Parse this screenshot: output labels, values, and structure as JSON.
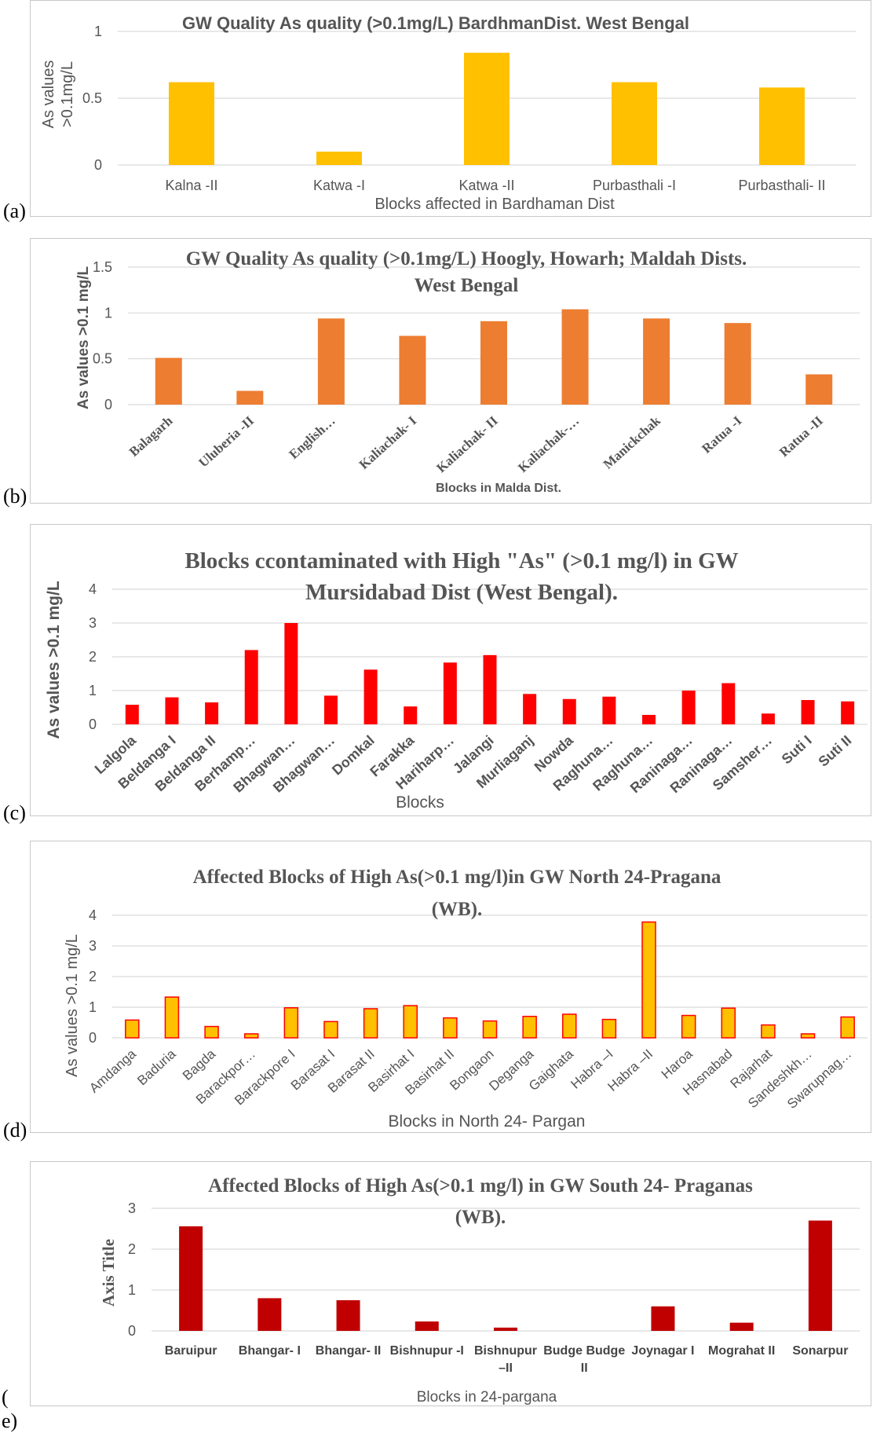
{
  "charts": [
    {
      "panel_label": "(a)",
      "chart_data": {
        "type": "bar",
        "title": "GW Quality As quality (>0.1mg/L) BardhmanDist. West Bengal",
        "xlabel": "Blocks affected in Bardhaman Dist",
        "ylabel": "As values >0.1mg/L",
        "categories": [
          "Kalna -II",
          "Katwa -I",
          "Katwa -II",
          "Purbasthali -I",
          "Purbasthali- II"
        ],
        "values": [
          0.62,
          0.1,
          0.84,
          0.62,
          0.58
        ],
        "ylim": [
          0,
          1
        ],
        "yticks": [
          "0",
          "0.5",
          "1"
        ],
        "grid": true,
        "color": "#FFC000"
      }
    },
    {
      "panel_label": "(b)",
      "chart_data": {
        "type": "bar",
        "title": "GW Quality As quality (>0.1mg/L) Hoogly, Howarh; Maldah Dists. West Bengal",
        "xlabel": "Blocks in Malda Dist.",
        "ylabel": "As values >0.1 mg/L",
        "categories": [
          "Balagarh",
          "Uluberia -II",
          "English…",
          "Kaliachak- I",
          "Kaliachak- II",
          "Kaliachak-…",
          "Manickchak",
          "Ratua -I",
          "Ratua -II"
        ],
        "values": [
          0.51,
          0.15,
          0.94,
          0.75,
          0.91,
          1.04,
          0.94,
          0.89,
          0.33
        ],
        "ylim": [
          0,
          1.5
        ],
        "yticks": [
          "0",
          "0.5",
          "1",
          "1.5"
        ],
        "grid": true,
        "color": "#ED7D31"
      }
    },
    {
      "panel_label": "(c)",
      "chart_data": {
        "type": "bar",
        "title": "Blocks ccontaminated with High \"As\" (>0.1 mg/l) in GW Mursidabad Dist (West Bengal).",
        "xlabel": "Blocks",
        "ylabel": "As values >0.1 mg/L",
        "categories": [
          "Lalgola",
          "Beldanga I",
          "Beldanga II",
          "Berhamp…",
          "Bhagwan…",
          "Bhagwan…",
          "Domkal",
          "Farakka",
          "Hariharp…",
          "Jalangi",
          "Murliaganj",
          "Nowda",
          "Raghuna…",
          "Raghuna…",
          "Raninaga…",
          "Raninaga…",
          "Samsher…",
          "Suti I",
          "Suti II"
        ],
        "values": [
          0.58,
          0.8,
          0.65,
          2.2,
          3.0,
          0.85,
          1.62,
          0.53,
          1.83,
          2.05,
          0.9,
          0.75,
          0.82,
          0.28,
          1.0,
          1.22,
          0.32,
          0.72,
          0.68
        ],
        "ylim": [
          0,
          4
        ],
        "yticks": [
          "0",
          "1",
          "2",
          "3",
          "4"
        ],
        "grid": true,
        "color": "#FF0000"
      }
    },
    {
      "panel_label": "(d)",
      "chart_data": {
        "type": "bar",
        "title": "Affected Blocks of High As(>0.1 mg/l)in GW North 24-Pragana (WB).",
        "xlabel": "Blocks  in North 24- Pargan",
        "ylabel": "As values >0.1 mg/L",
        "categories": [
          "Amdanga",
          "Baduria",
          "Bagda",
          "Barackpor…",
          "Barackpore I",
          "Barasat I",
          "Barasat II",
          "Basirhat I",
          "Basirhat II",
          "Bongaon",
          "Deganga",
          "Gaighata",
          "Habra –I",
          "Habra –II",
          "Haroa",
          "Hasnabad",
          "Rajarhat",
          "Sandeshkh…",
          "Swarupnag…"
        ],
        "values": [
          0.58,
          1.33,
          0.37,
          0.13,
          0.98,
          0.53,
          0.95,
          1.05,
          0.65,
          0.55,
          0.7,
          0.77,
          0.6,
          3.78,
          0.73,
          0.97,
          0.42,
          0.13,
          0.68
        ],
        "ylim": [
          0,
          4
        ],
        "yticks": [
          "0",
          "1",
          "2",
          "3",
          "4"
        ],
        "grid": true,
        "color": "#FFC000",
        "edge_color": "#FF0000"
      }
    },
    {
      "panel_label": "( e)",
      "chart_data": {
        "type": "bar",
        "title": "Affected Blocks of High As(>0.1 mg/l) in GW South 24- Praganas (WB).",
        "xlabel": "Blocks in 24-pargana",
        "ylabel": "Axis Title",
        "categories": [
          "Baruipur",
          "Bhangar- I",
          "Bhangar- II",
          "Bishnupur -I",
          "Bishnupur –II",
          "Budge Budge II",
          "Joynagar I",
          "Mograhat II",
          "Sonarpur"
        ],
        "values": [
          2.56,
          0.8,
          0.75,
          0.23,
          0.08,
          0,
          0.6,
          0.2,
          2.7
        ],
        "ylim": [
          0,
          3
        ],
        "yticks": [
          "0",
          "1",
          "2",
          "3"
        ],
        "grid": true,
        "color": "#C00000"
      }
    }
  ]
}
